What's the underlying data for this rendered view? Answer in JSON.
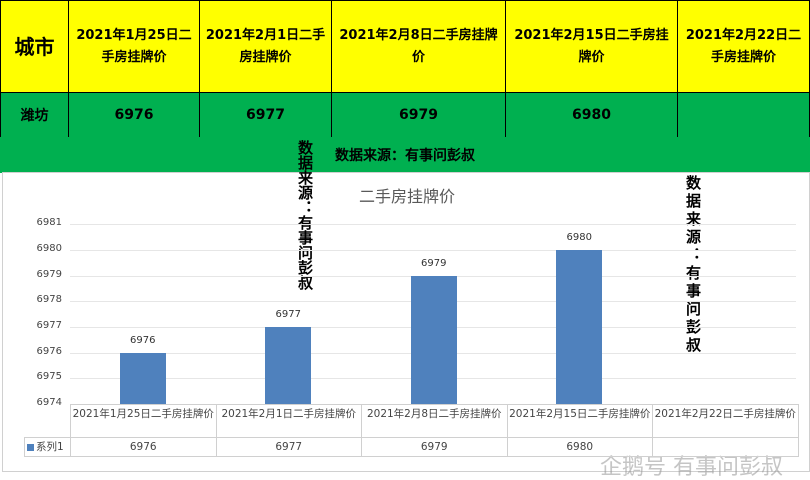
{
  "table": {
    "city_header": "城市",
    "headers": [
      "2021年1月25日二手房挂牌价",
      "2021年2月1日二手房挂牌价",
      "2021年2月8日二手房挂牌价",
      "2021年2月15日二手房挂牌价",
      "2021年2月22日二手房挂牌价"
    ],
    "city": "潍坊",
    "values": [
      "6976",
      "6977",
      "6979",
      "6980",
      ""
    ],
    "banner": "数据来源：有事问彭叔"
  },
  "overlay": {
    "vertical_note_1": "数据来源：有事问彭叔",
    "vertical_note_2": "数据来源：有事问彭叔",
    "watermark": "企鹅号 有事问彭叔"
  },
  "chart_data": {
    "type": "bar",
    "title": "二手房挂牌价",
    "categories": [
      "2021年1月25日二手房挂牌价",
      "2021年2月1日二手房挂牌价",
      "2021年2月8日二手房挂牌价",
      "2021年2月15日二手房挂牌价",
      "2021年2月22日二手房挂牌价"
    ],
    "series": [
      {
        "name": "系列1",
        "values": [
          6976,
          6977,
          6979,
          6980,
          null
        ],
        "color": "#4f81bd"
      }
    ],
    "ylim": [
      6974,
      6981
    ],
    "yticks": [
      6974,
      6975,
      6976,
      6977,
      6978,
      6979,
      6980,
      6981
    ],
    "data_table_values": [
      "6976",
      "6977",
      "6979",
      "6980",
      ""
    ],
    "legend": "data-table"
  }
}
